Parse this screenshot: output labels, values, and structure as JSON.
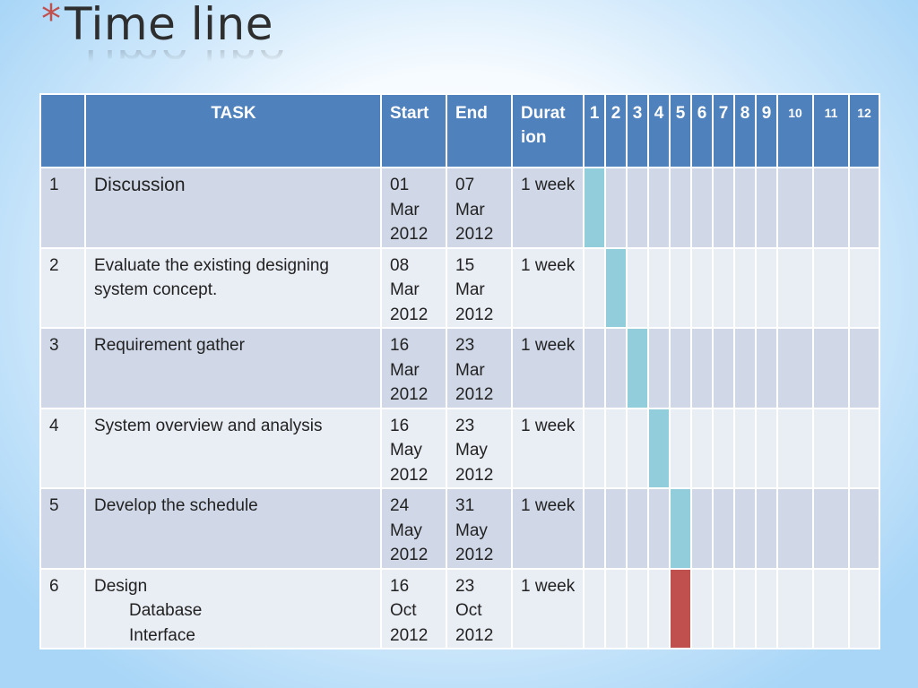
{
  "title": {
    "star": "*",
    "text": "Time line"
  },
  "table": {
    "headers": {
      "num": "",
      "task": "TASK",
      "start": "Start",
      "end": "End",
      "duration": "Durat ion",
      "weeks": [
        "1",
        "2",
        "3",
        "4",
        "5",
        "6",
        "7",
        "8",
        "9",
        "10",
        "11",
        "12"
      ]
    },
    "rows": [
      {
        "num": "1",
        "task": "Discussion",
        "sub": [],
        "start": "01 Mar 2012",
        "end": "07 Mar 2012",
        "duration": "1 week",
        "week": 1,
        "bar_color": "#92cddc"
      },
      {
        "num": "2",
        "task": "Evaluate the existing designing system concept.",
        "sub": [],
        "start": "08 Mar 2012",
        "end": "15 Mar 2012",
        "duration": "1 week",
        "week": 2,
        "bar_color": "#92cddc"
      },
      {
        "num": "3",
        "task": "Requirement gather",
        "sub": [],
        "start": "16 Mar 2012",
        "end": "23 Mar 2012",
        "duration": "1 week",
        "week": 3,
        "bar_color": "#92cddc"
      },
      {
        "num": "4",
        "task": "System overview and analysis",
        "sub": [],
        "start": "16 May 2012",
        "end": "23 May 2012",
        "duration": "1 week",
        "week": 4,
        "bar_color": "#92cddc"
      },
      {
        "num": "5",
        "task": "Develop the schedule",
        "sub": [],
        "start": "24 May 2012",
        "end": "31 May 2012",
        "duration": "1 week",
        "week": 5,
        "bar_color": "#92cddc"
      },
      {
        "num": "6",
        "task": "Design",
        "sub": [
          "Database",
          "Interface"
        ],
        "start": "16 Oct 2012",
        "end": "23 Oct 2012",
        "duration": "1 week",
        "week": 5,
        "bar_color": "#c0504d"
      }
    ]
  },
  "colors": {
    "header_bg": "#4f81bd",
    "row_odd": "#d0d8e8",
    "row_even": "#e9edf4",
    "bar_cyan": "#92cddc",
    "bar_red": "#c0504d",
    "title_star": "#c0504d"
  }
}
